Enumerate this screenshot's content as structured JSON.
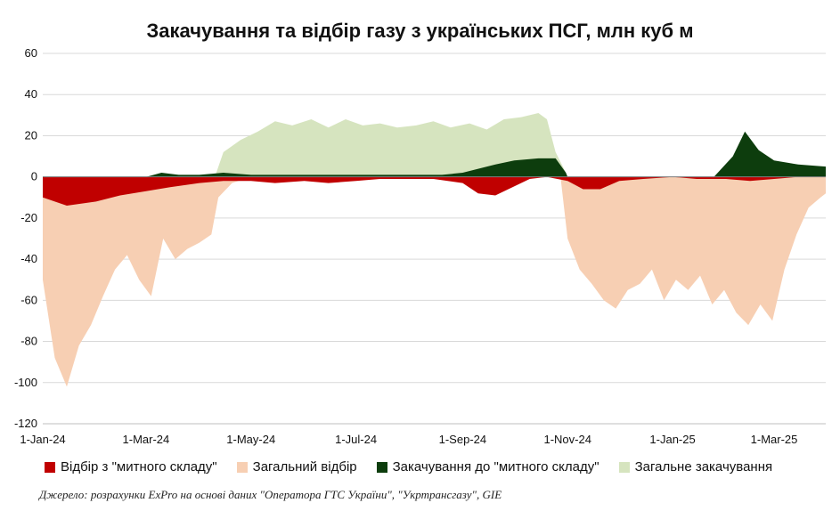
{
  "chart_data": {
    "type": "area",
    "title": "Закачування та відбір газу з українських ПСГ, млн куб м",
    "ylim": [
      -120,
      60
    ],
    "y_ticks": [
      "60",
      "40",
      "20",
      "0",
      "-20",
      "-40",
      "-60",
      "-80",
      "-100",
      "-120"
    ],
    "x_ticks": [
      "1-Jan-24",
      "1-Mar-24",
      "1-May-24",
      "1-Jul-24",
      "1-Sep-24",
      "1-Nov-24",
      "1-Jan-25",
      "1-Mar-25"
    ],
    "grid": true,
    "legend_position": "bottom",
    "series": [
      {
        "name": "Загальний відбір",
        "color": "#f7cfb3",
        "x": [
          "2024-01-01",
          "2024-01-08",
          "2024-01-15",
          "2024-01-22",
          "2024-01-29",
          "2024-02-05",
          "2024-02-12",
          "2024-02-19",
          "2024-02-26",
          "2024-03-04",
          "2024-03-11",
          "2024-03-18",
          "2024-03-25",
          "2024-04-01",
          "2024-04-08",
          "2024-04-12",
          "2024-04-20",
          "2024-05-01",
          "2024-06-01",
          "2024-07-01",
          "2024-08-01",
          "2024-09-01",
          "2024-10-01",
          "2024-10-20",
          "2024-10-28",
          "2024-11-01",
          "2024-11-08",
          "2024-11-15",
          "2024-11-22",
          "2024-11-29",
          "2024-12-06",
          "2024-12-13",
          "2024-12-20",
          "2024-12-27",
          "2025-01-03",
          "2025-01-10",
          "2025-01-17",
          "2025-01-24",
          "2025-01-31",
          "2025-02-07",
          "2025-02-14",
          "2025-02-21",
          "2025-02-28",
          "2025-03-07",
          "2025-03-14",
          "2025-03-21",
          "2025-03-28",
          "2025-03-31"
        ],
        "values": [
          -50,
          -88,
          -102,
          -82,
          -72,
          -58,
          -45,
          -38,
          -50,
          -58,
          -30,
          -40,
          -35,
          -32,
          -28,
          -10,
          -3,
          0,
          0,
          0,
          0,
          0,
          0,
          0,
          -1,
          -30,
          -45,
          -52,
          -60,
          -64,
          -55,
          -52,
          -45,
          -60,
          -50,
          -55,
          -48,
          -62,
          -55,
          -66,
          -72,
          -62,
          -70,
          -45,
          -28,
          -15,
          -10,
          -8
        ]
      },
      {
        "name": "Відбір з \"митного складу\"",
        "color": "#c00000",
        "x": [
          "2024-01-01",
          "2024-01-15",
          "2024-02-01",
          "2024-02-15",
          "2024-03-01",
          "2024-03-15",
          "2024-04-01",
          "2024-04-15",
          "2024-05-01",
          "2024-05-15",
          "2024-06-01",
          "2024-06-15",
          "2024-07-01",
          "2024-07-15",
          "2024-08-01",
          "2024-08-15",
          "2024-09-01",
          "2024-09-10",
          "2024-09-20",
          "2024-09-30",
          "2024-10-10",
          "2024-10-20",
          "2024-11-01",
          "2024-11-10",
          "2024-11-20",
          "2024-12-01",
          "2024-12-15",
          "2025-01-01",
          "2025-01-15",
          "2025-02-01",
          "2025-02-15",
          "2025-03-01",
          "2025-03-15",
          "2025-03-31"
        ],
        "values": [
          -10,
          -14,
          -12,
          -9,
          -7,
          -5,
          -3,
          -2,
          -2,
          -3,
          -2,
          -3,
          -2,
          -1,
          -1,
          -1,
          -3,
          -8,
          -9,
          -5,
          -1,
          0,
          -2,
          -6,
          -6,
          -2,
          -1,
          0,
          -1,
          -1,
          -2,
          -1,
          0,
          0
        ]
      },
      {
        "name": "Закачування до \"митного складу\"",
        "color": "#0d3d0d",
        "x": [
          "2024-01-01",
          "2024-03-01",
          "2024-03-10",
          "2024-03-20",
          "2024-04-01",
          "2024-04-15",
          "2024-05-01",
          "2024-06-01",
          "2024-07-01",
          "2024-08-01",
          "2024-08-20",
          "2024-09-01",
          "2024-09-20",
          "2024-10-01",
          "2024-10-15",
          "2024-10-25",
          "2024-10-31",
          "2024-11-01",
          "2025-01-01",
          "2025-01-25",
          "2025-02-05",
          "2025-02-12",
          "2025-02-20",
          "2025-03-01",
          "2025-03-15",
          "2025-03-31"
        ],
        "values": [
          0,
          0,
          2,
          1,
          1,
          2,
          1,
          1,
          1,
          1,
          1,
          2,
          6,
          8,
          9,
          9,
          2,
          0,
          0,
          0,
          10,
          22,
          13,
          8,
          6,
          5
        ]
      },
      {
        "name": "Загальне закачування",
        "color": "#d6e4bf",
        "x": [
          "2024-01-01",
          "2024-04-10",
          "2024-04-15",
          "2024-04-25",
          "2024-05-05",
          "2024-05-15",
          "2024-05-25",
          "2024-06-05",
          "2024-06-15",
          "2024-06-25",
          "2024-07-05",
          "2024-07-15",
          "2024-07-25",
          "2024-08-05",
          "2024-08-15",
          "2024-08-25",
          "2024-09-05",
          "2024-09-15",
          "2024-09-25",
          "2024-10-05",
          "2024-10-15",
          "2024-10-20",
          "2024-10-25",
          "2024-10-31",
          "2024-11-01",
          "2025-03-31"
        ],
        "values": [
          0,
          0,
          12,
          18,
          22,
          27,
          25,
          28,
          24,
          28,
          25,
          26,
          24,
          25,
          27,
          24,
          26,
          23,
          28,
          29,
          31,
          28,
          12,
          2,
          0,
          0
        ]
      }
    ]
  },
  "source": "Джерело: розрахунки ExPro на основі даних \"Оператора ГТС України\", \"Укртрансгазу\", GIE"
}
